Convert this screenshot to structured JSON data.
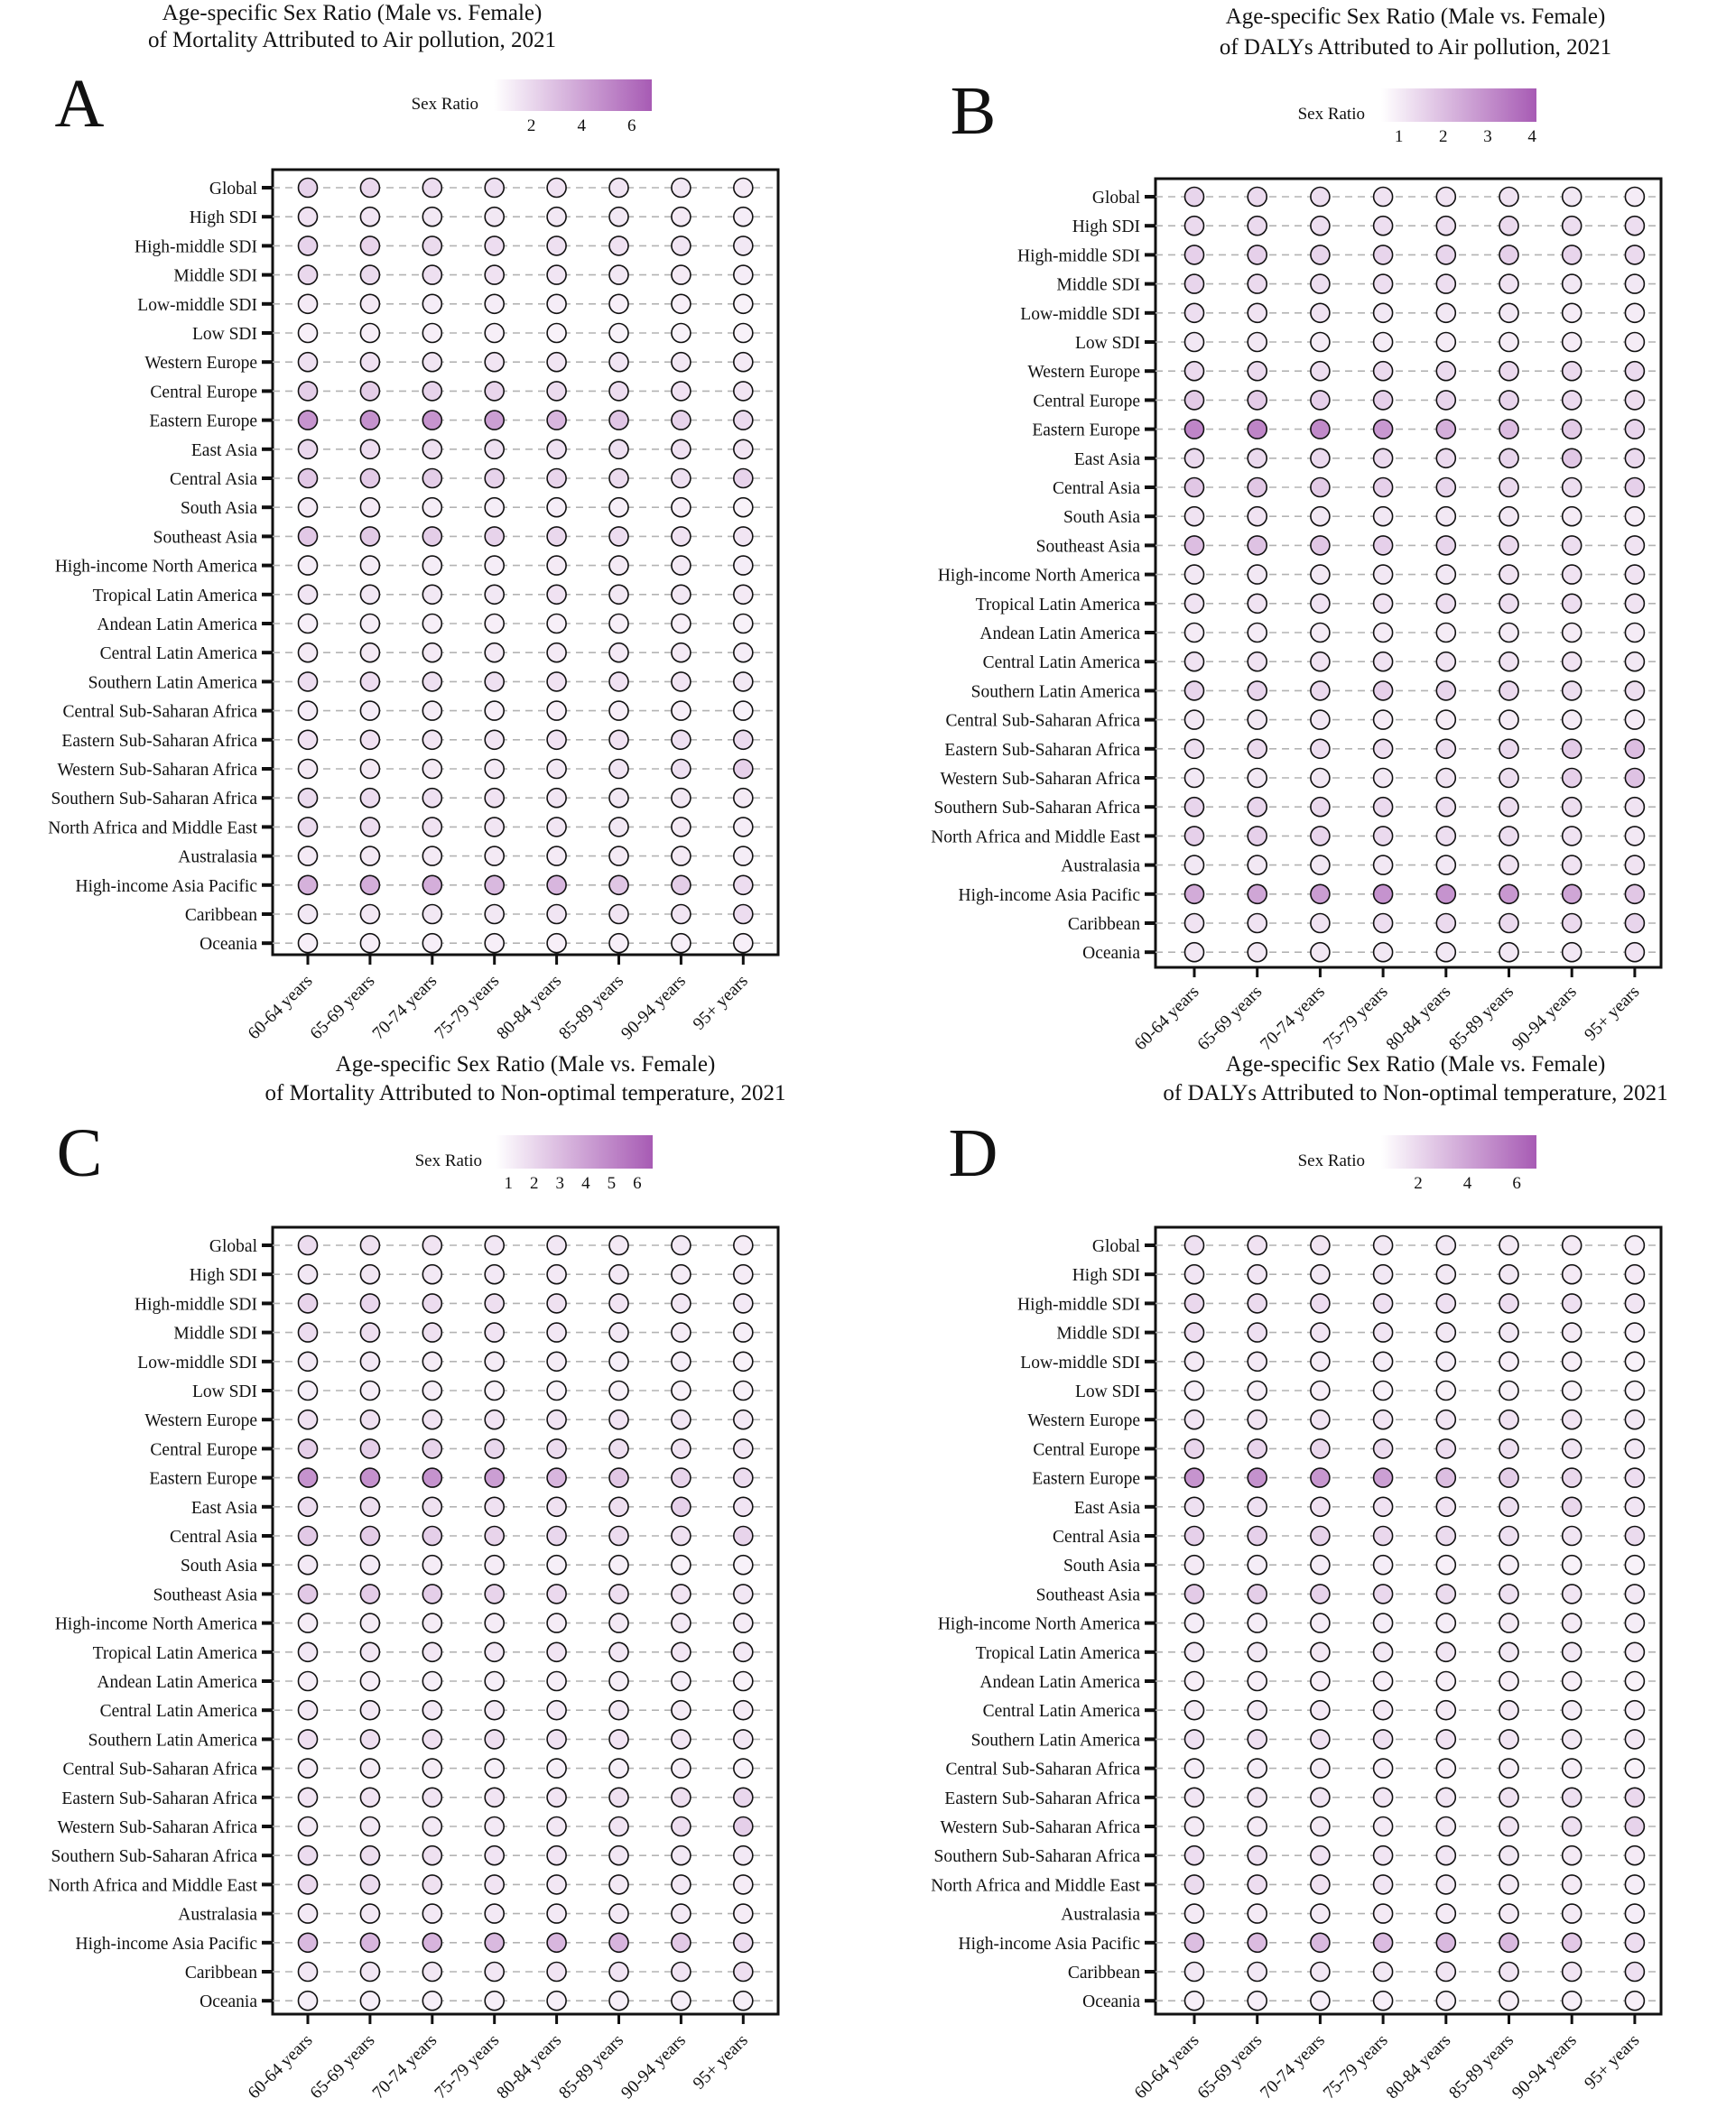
{
  "figure": {
    "legend_title": "Sex Ratio",
    "color_low": "#ffffff",
    "color_high": "#a75bb4",
    "grid": true,
    "categories_y": [
      "Global",
      "High SDI",
      "High-middle SDI",
      "Middle SDI",
      "Low-middle SDI",
      "Low SDI",
      "Western Europe",
      "Central Europe",
      "Eastern Europe",
      "East Asia",
      "Central Asia",
      "South Asia",
      "Southeast Asia",
      "High-income North America",
      "Tropical Latin America",
      "Andean Latin America",
      "Central Latin America",
      "Southern Latin America",
      "Central Sub-Saharan Africa",
      "Eastern Sub-Saharan Africa",
      "Western Sub-Saharan Africa",
      "Southern Sub-Saharan Africa",
      "North Africa and Middle East",
      "Australasia",
      "High-income Asia Pacific",
      "Caribbean",
      "Oceania"
    ],
    "categories_x": [
      "60-64 years",
      "65-69 years",
      "70-74 years",
      "75-79 years",
      "80-84 years",
      "85-89 years",
      "90-94 years",
      "95+ years"
    ]
  },
  "chart_data": [
    {
      "panel": "A",
      "type": "heatmap",
      "title_line1": "Age-specific Sex Ratio (Male vs. Female)",
      "title_line2": "of Mortality Attributed to Air pollution, 2021",
      "legend_ticks": [
        2,
        4,
        6
      ],
      "legend_range": [
        0.5,
        6.8
      ],
      "values": [
        [
          2.2,
          2.0,
          1.8,
          1.7,
          1.6,
          1.5,
          1.4,
          1.3
        ],
        [
          1.6,
          1.5,
          1.4,
          1.4,
          1.4,
          1.4,
          1.3,
          1.2
        ],
        [
          2.2,
          2.1,
          1.9,
          1.8,
          1.7,
          1.6,
          1.5,
          1.4
        ],
        [
          2.0,
          1.9,
          1.7,
          1.6,
          1.5,
          1.4,
          1.3,
          1.2
        ],
        [
          1.3,
          1.3,
          1.2,
          1.2,
          1.2,
          1.1,
          1.1,
          1.0
        ],
        [
          1.1,
          1.1,
          1.1,
          1.1,
          1.0,
          1.0,
          1.0,
          1.0
        ],
        [
          1.7,
          1.6,
          1.5,
          1.5,
          1.5,
          1.5,
          1.4,
          1.3
        ],
        [
          2.4,
          2.4,
          2.2,
          2.1,
          1.9,
          1.8,
          1.6,
          1.5
        ],
        [
          4.6,
          4.7,
          4.6,
          4.2,
          3.3,
          2.7,
          2.2,
          1.9
        ],
        [
          2.0,
          1.8,
          1.7,
          1.7,
          1.7,
          1.7,
          1.6,
          1.5
        ],
        [
          2.6,
          2.5,
          2.4,
          2.2,
          2.1,
          1.9,
          1.7,
          2.2
        ],
        [
          1.3,
          1.3,
          1.2,
          1.2,
          1.2,
          1.1,
          1.1,
          1.0
        ],
        [
          2.6,
          2.5,
          2.4,
          2.2,
          2.0,
          1.8,
          1.6,
          1.5
        ],
        [
          1.2,
          1.2,
          1.2,
          1.2,
          1.3,
          1.3,
          1.3,
          1.2
        ],
        [
          1.5,
          1.4,
          1.4,
          1.4,
          1.6,
          1.4,
          1.4,
          1.3
        ],
        [
          1.1,
          1.1,
          1.1,
          1.1,
          1.1,
          1.1,
          1.1,
          1.0
        ],
        [
          1.3,
          1.3,
          1.3,
          1.3,
          1.3,
          1.3,
          1.3,
          1.2
        ],
        [
          1.8,
          1.8,
          1.7,
          1.7,
          1.6,
          1.6,
          1.5,
          1.4
        ],
        [
          1.2,
          1.2,
          1.2,
          1.1,
          1.1,
          1.1,
          1.1,
          1.0
        ],
        [
          1.6,
          1.6,
          1.5,
          1.5,
          1.6,
          1.6,
          1.7,
          1.9
        ],
        [
          1.3,
          1.3,
          1.3,
          1.3,
          1.4,
          1.5,
          1.7,
          2.3
        ],
        [
          1.9,
          1.8,
          1.7,
          1.6,
          1.5,
          1.4,
          1.4,
          1.3
        ],
        [
          1.9,
          1.8,
          1.6,
          1.5,
          1.5,
          1.4,
          1.3,
          1.2
        ],
        [
          1.3,
          1.3,
          1.3,
          1.3,
          1.3,
          1.3,
          1.3,
          1.2
        ],
        [
          3.5,
          3.6,
          3.6,
          3.2,
          3.3,
          2.7,
          2.4,
          1.8
        ],
        [
          1.4,
          1.4,
          1.4,
          1.4,
          1.5,
          1.5,
          1.5,
          1.8
        ],
        [
          1.1,
          1.1,
          1.1,
          1.1,
          1.1,
          1.1,
          1.1,
          1.1
        ]
      ]
    },
    {
      "panel": "B",
      "type": "heatmap",
      "title_line1": "Age-specific Sex Ratio (Male vs. Female)",
      "title_line2": "of DALYs Attributed to Air pollution, 2021",
      "legend_ticks": [
        1,
        2,
        3,
        4
      ],
      "legend_range": [
        0.6,
        4.1
      ],
      "values": [
        [
          1.5,
          1.4,
          1.3,
          1.2,
          1.2,
          1.2,
          1.1,
          1.0
        ],
        [
          1.4,
          1.4,
          1.3,
          1.3,
          1.3,
          1.4,
          1.3,
          1.3
        ],
        [
          1.6,
          1.6,
          1.5,
          1.5,
          1.5,
          1.6,
          1.5,
          1.4
        ],
        [
          1.5,
          1.4,
          1.3,
          1.3,
          1.3,
          1.2,
          1.1,
          1.1
        ],
        [
          1.3,
          1.2,
          1.2,
          1.1,
          1.1,
          1.1,
          1.0,
          1.0
        ],
        [
          1.1,
          1.1,
          1.0,
          1.0,
          1.0,
          1.0,
          1.0,
          1.0
        ],
        [
          1.4,
          1.4,
          1.3,
          1.4,
          1.4,
          1.4,
          1.4,
          1.4
        ],
        [
          1.7,
          1.7,
          1.6,
          1.6,
          1.5,
          1.5,
          1.4,
          1.3
        ],
        [
          3.2,
          3.2,
          3.1,
          2.8,
          2.3,
          2.0,
          1.7,
          1.5
        ],
        [
          1.4,
          1.4,
          1.4,
          1.4,
          1.4,
          1.5,
          1.8,
          1.4
        ],
        [
          1.8,
          1.8,
          1.7,
          1.6,
          1.5,
          1.4,
          1.3,
          1.6
        ],
        [
          1.2,
          1.2,
          1.1,
          1.1,
          1.1,
          1.1,
          1.0,
          1.0
        ],
        [
          2.0,
          1.9,
          1.8,
          1.6,
          1.5,
          1.4,
          1.3,
          1.2
        ],
        [
          1.1,
          1.1,
          1.1,
          1.1,
          1.1,
          1.2,
          1.2,
          1.2
        ],
        [
          1.2,
          1.2,
          1.2,
          1.2,
          1.3,
          1.3,
          1.3,
          1.2
        ],
        [
          1.0,
          1.0,
          1.0,
          1.0,
          1.0,
          1.0,
          1.0,
          1.0
        ],
        [
          1.2,
          1.2,
          1.2,
          1.2,
          1.2,
          1.2,
          1.2,
          1.1
        ],
        [
          1.5,
          1.5,
          1.4,
          1.6,
          1.5,
          1.4,
          1.3,
          1.3
        ],
        [
          1.1,
          1.1,
          1.1,
          1.0,
          1.0,
          1.0,
          1.0,
          1.0
        ],
        [
          1.3,
          1.4,
          1.3,
          1.3,
          1.3,
          1.4,
          1.7,
          2.0
        ],
        [
          1.1,
          1.1,
          1.1,
          1.1,
          1.2,
          1.3,
          1.6,
          1.9
        ],
        [
          1.5,
          1.5,
          1.4,
          1.4,
          1.3,
          1.3,
          1.3,
          1.2
        ],
        [
          1.6,
          1.6,
          1.5,
          1.4,
          1.3,
          1.3,
          1.2,
          1.1
        ],
        [
          1.1,
          1.1,
          1.1,
          1.1,
          1.1,
          1.2,
          1.2,
          1.2
        ],
        [
          2.4,
          2.5,
          2.7,
          2.9,
          2.9,
          2.8,
          2.5,
          1.8
        ],
        [
          1.2,
          1.2,
          1.2,
          1.3,
          1.4,
          1.4,
          1.4,
          1.5
        ],
        [
          1.1,
          1.1,
          1.1,
          1.1,
          1.1,
          1.1,
          1.1,
          1.2
        ]
      ]
    },
    {
      "panel": "C",
      "type": "heatmap",
      "title_line1": "Age-specific Sex Ratio (Male vs. Female)",
      "title_line2": "of Mortality Attributed to Non-optimal temperature, 2021",
      "legend_ticks": [
        1,
        2,
        3,
        4,
        5,
        6
      ],
      "legend_range": [
        0.5,
        6.6
      ],
      "values": [
        [
          1.8,
          1.6,
          1.5,
          1.4,
          1.4,
          1.3,
          1.3,
          1.2
        ],
        [
          1.4,
          1.4,
          1.3,
          1.3,
          1.3,
          1.3,
          1.2,
          1.2
        ],
        [
          2.1,
          2.0,
          1.8,
          1.7,
          1.6,
          1.5,
          1.4,
          1.3
        ],
        [
          1.8,
          1.7,
          1.6,
          1.5,
          1.4,
          1.3,
          1.2,
          1.1
        ],
        [
          1.3,
          1.3,
          1.2,
          1.2,
          1.2,
          1.1,
          1.1,
          1.0
        ],
        [
          1.1,
          1.1,
          1.1,
          1.0,
          1.0,
          1.0,
          1.0,
          1.0
        ],
        [
          1.6,
          1.6,
          1.5,
          1.5,
          1.5,
          1.5,
          1.4,
          1.3
        ],
        [
          2.3,
          2.3,
          2.1,
          2.0,
          1.8,
          1.7,
          1.5,
          1.4
        ],
        [
          4.5,
          4.6,
          4.5,
          4.1,
          3.2,
          2.6,
          2.1,
          1.8
        ],
        [
          1.8,
          1.7,
          1.6,
          1.6,
          1.6,
          1.7,
          2.2,
          1.5
        ],
        [
          2.5,
          2.4,
          2.3,
          2.1,
          2.0,
          1.8,
          1.6,
          2.1
        ],
        [
          1.3,
          1.2,
          1.2,
          1.2,
          1.1,
          1.1,
          1.0,
          1.0
        ],
        [
          2.5,
          2.4,
          2.3,
          2.1,
          1.9,
          1.7,
          1.5,
          1.4
        ],
        [
          1.2,
          1.2,
          1.2,
          1.2,
          1.2,
          1.3,
          1.3,
          1.2
        ],
        [
          1.4,
          1.4,
          1.4,
          1.4,
          1.5,
          1.4,
          1.4,
          1.3
        ],
        [
          1.1,
          1.1,
          1.1,
          1.1,
          1.1,
          1.1,
          1.1,
          1.0
        ],
        [
          1.3,
          1.3,
          1.3,
          1.3,
          1.3,
          1.3,
          1.2,
          1.2
        ],
        [
          1.7,
          1.7,
          1.6,
          1.7,
          1.6,
          1.5,
          1.4,
          1.4
        ],
        [
          1.2,
          1.2,
          1.2,
          1.1,
          1.1,
          1.1,
          1.1,
          1.0
        ],
        [
          1.5,
          1.5,
          1.5,
          1.5,
          1.5,
          1.6,
          1.7,
          2.0
        ],
        [
          1.3,
          1.3,
          1.3,
          1.3,
          1.4,
          1.5,
          1.7,
          2.3
        ],
        [
          1.8,
          1.7,
          1.6,
          1.5,
          1.5,
          1.4,
          1.3,
          1.3
        ],
        [
          1.9,
          1.8,
          1.6,
          1.5,
          1.4,
          1.3,
          1.3,
          1.2
        ],
        [
          1.3,
          1.3,
          1.3,
          1.3,
          1.3,
          1.3,
          1.3,
          1.2
        ],
        [
          3.1,
          3.2,
          3.3,
          3.1,
          3.2,
          3.3,
          2.5,
          1.8
        ],
        [
          1.4,
          1.4,
          1.4,
          1.4,
          1.5,
          1.5,
          1.5,
          1.7
        ],
        [
          1.1,
          1.1,
          1.1,
          1.1,
          1.1,
          1.1,
          1.1,
          1.1
        ]
      ]
    },
    {
      "panel": "D",
      "type": "heatmap",
      "title_line1": "Age-specific Sex Ratio (Male vs. Female)",
      "title_line2": "of DALYs Attributed to Non-optimal temperature, 2021",
      "legend_ticks": [
        2,
        4,
        6
      ],
      "legend_range": [
        0.5,
        6.8
      ],
      "values": [
        [
          1.7,
          1.6,
          1.5,
          1.4,
          1.4,
          1.3,
          1.3,
          1.2
        ],
        [
          1.5,
          1.5,
          1.4,
          1.4,
          1.4,
          1.4,
          1.3,
          1.3
        ],
        [
          2.0,
          1.9,
          1.8,
          1.7,
          1.7,
          1.8,
          1.7,
          1.5
        ],
        [
          1.8,
          1.7,
          1.5,
          1.5,
          1.4,
          1.4,
          1.3,
          1.2
        ],
        [
          1.3,
          1.3,
          1.2,
          1.2,
          1.2,
          1.1,
          1.1,
          1.0
        ],
        [
          1.1,
          1.1,
          1.1,
          1.0,
          1.0,
          1.0,
          1.0,
          1.0
        ],
        [
          1.5,
          1.5,
          1.5,
          1.5,
          1.5,
          1.6,
          1.5,
          1.4
        ],
        [
          2.1,
          2.1,
          2.0,
          1.9,
          1.8,
          1.7,
          1.5,
          1.4
        ],
        [
          4.6,
          4.7,
          4.5,
          4.2,
          3.0,
          2.4,
          2.0,
          1.8
        ],
        [
          1.7,
          1.7,
          1.6,
          1.6,
          1.6,
          1.7,
          2.0,
          1.5
        ],
        [
          2.3,
          2.3,
          2.2,
          2.0,
          1.9,
          1.7,
          1.5,
          1.9
        ],
        [
          1.3,
          1.2,
          1.2,
          1.2,
          1.1,
          1.1,
          1.0,
          1.0
        ],
        [
          2.5,
          2.4,
          2.2,
          2.0,
          1.9,
          1.7,
          1.5,
          1.4
        ],
        [
          1.2,
          1.2,
          1.2,
          1.2,
          1.2,
          1.3,
          1.3,
          1.2
        ],
        [
          1.4,
          1.4,
          1.4,
          1.4,
          1.5,
          1.4,
          1.4,
          1.3
        ],
        [
          1.1,
          1.1,
          1.1,
          1.1,
          1.1,
          1.1,
          1.1,
          1.0
        ],
        [
          1.3,
          1.3,
          1.3,
          1.3,
          1.3,
          1.3,
          1.2,
          1.2
        ],
        [
          1.7,
          1.7,
          1.6,
          1.7,
          1.6,
          1.5,
          1.4,
          1.4
        ],
        [
          1.2,
          1.2,
          1.2,
          1.1,
          1.1,
          1.1,
          1.1,
          1.0
        ],
        [
          1.5,
          1.5,
          1.5,
          1.5,
          1.5,
          1.6,
          1.7,
          2.0
        ],
        [
          1.3,
          1.3,
          1.3,
          1.3,
          1.4,
          1.5,
          1.7,
          2.2
        ],
        [
          1.8,
          1.7,
          1.6,
          1.5,
          1.5,
          1.4,
          1.3,
          1.3
        ],
        [
          1.9,
          1.8,
          1.6,
          1.5,
          1.4,
          1.3,
          1.3,
          1.2
        ],
        [
          1.3,
          1.3,
          1.3,
          1.3,
          1.3,
          1.3,
          1.3,
          1.2
        ],
        [
          3.0,
          3.1,
          3.2,
          3.1,
          3.2,
          3.2,
          2.6,
          1.8
        ],
        [
          1.4,
          1.4,
          1.4,
          1.4,
          1.5,
          1.5,
          1.5,
          1.7
        ],
        [
          1.1,
          1.1,
          1.1,
          1.1,
          1.1,
          1.1,
          1.1,
          1.1
        ]
      ]
    }
  ]
}
